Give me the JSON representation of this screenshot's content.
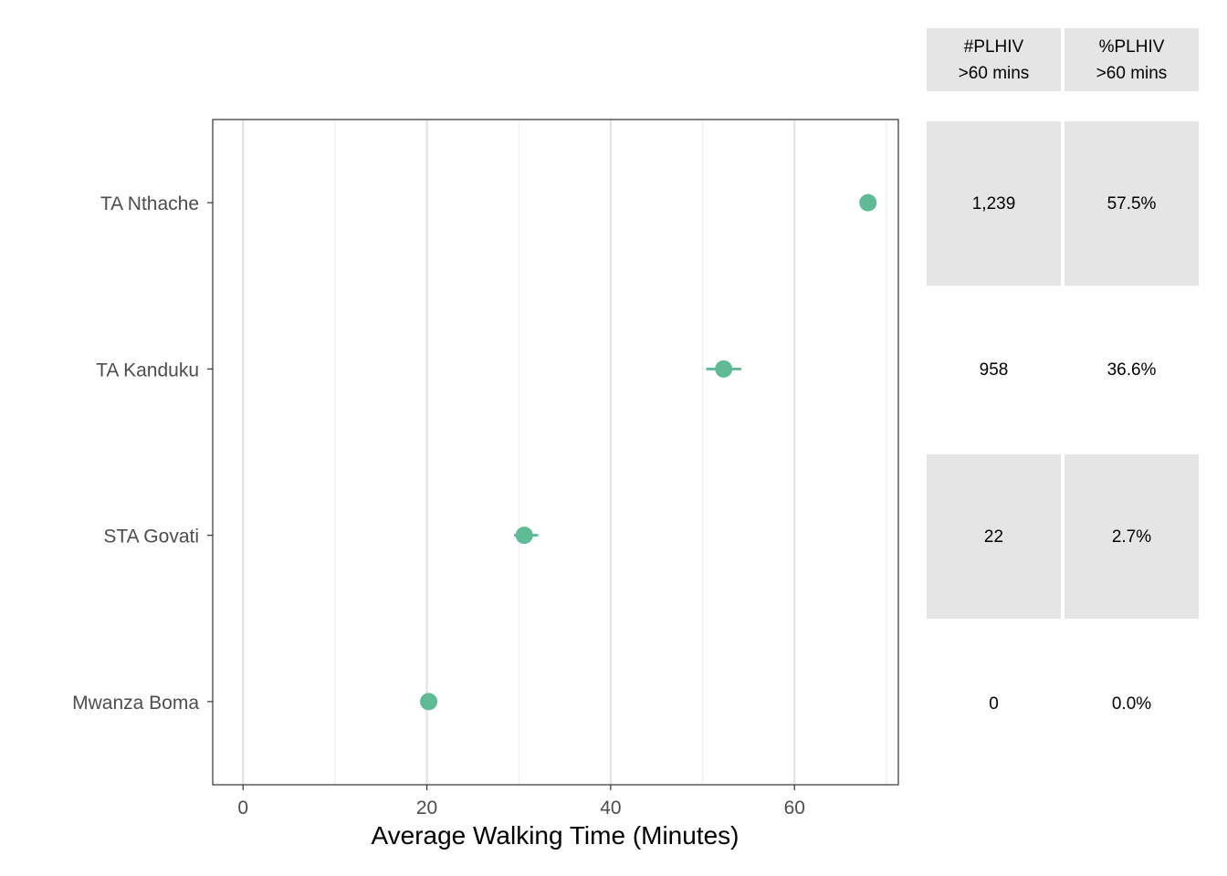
{
  "chart_data": {
    "type": "scatter",
    "title": "",
    "xlabel": "Average Walking Time (Minutes)",
    "ylabel": "",
    "xlim": [
      -3.3,
      71.3
    ],
    "x_ticks": [
      0,
      20,
      40,
      60
    ],
    "x_tick_labels": [
      "0",
      "20",
      "40",
      "60"
    ],
    "grid": true,
    "legend": "none",
    "color": "#5fba96",
    "categories": [
      "TA Nthache",
      "TA Kanduku",
      "STA Govati",
      "Mwanza Boma"
    ],
    "values": [
      68.0,
      52.3,
      30.6,
      20.2
    ],
    "error_low": [
      68.0,
      50.4,
      29.5,
      20.2
    ],
    "error_high": [
      68.0,
      54.2,
      32.1,
      20.2
    ]
  },
  "table": {
    "headers": [
      {
        "line1": "#PLHIV",
        "line2": ">60 mins"
      },
      {
        "line1": "%PLHIV",
        "line2": ">60 mins"
      }
    ],
    "rows": [
      [
        "1,239",
        "57.5%"
      ],
      [
        "958",
        "36.6%"
      ],
      [
        "22",
        "2.7%"
      ],
      [
        "0",
        "0.0%"
      ]
    ]
  }
}
